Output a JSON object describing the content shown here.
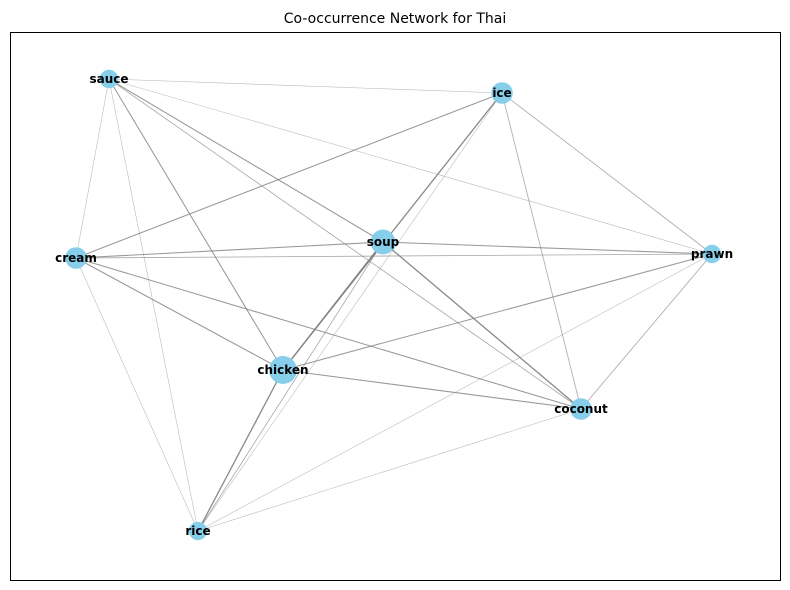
{
  "title": "Co-occurrence Network for Thai",
  "colors": {
    "node": "#87ceeb",
    "edge": "#808080",
    "frame": "#000000",
    "label": "#000000"
  },
  "chart_data": {
    "type": "network",
    "nodes": [
      {
        "id": "sauce",
        "label": "sauce",
        "weight": 2
      },
      {
        "id": "ice",
        "label": "ice",
        "weight": 3
      },
      {
        "id": "cream",
        "label": "cream",
        "weight": 3
      },
      {
        "id": "soup",
        "label": "soup",
        "weight": 4
      },
      {
        "id": "prawn",
        "label": "prawn",
        "weight": 2
      },
      {
        "id": "chicken",
        "label": "chicken",
        "weight": 5
      },
      {
        "id": "coconut",
        "label": "coconut",
        "weight": 3
      },
      {
        "id": "rice",
        "label": "rice",
        "weight": 2
      }
    ],
    "edges": [
      {
        "source": "sauce",
        "target": "ice",
        "weight": 1
      },
      {
        "source": "sauce",
        "target": "cream",
        "weight": 1
      },
      {
        "source": "sauce",
        "target": "soup",
        "weight": 3
      },
      {
        "source": "sauce",
        "target": "prawn",
        "weight": 1
      },
      {
        "source": "sauce",
        "target": "chicken",
        "weight": 3
      },
      {
        "source": "sauce",
        "target": "coconut",
        "weight": 2
      },
      {
        "source": "sauce",
        "target": "rice",
        "weight": 1
      },
      {
        "source": "ice",
        "target": "cream",
        "weight": 3
      },
      {
        "source": "ice",
        "target": "chicken",
        "weight": 4
      },
      {
        "source": "ice",
        "target": "prawn",
        "weight": 2
      },
      {
        "source": "ice",
        "target": "coconut",
        "weight": 2
      },
      {
        "source": "ice",
        "target": "rice",
        "weight": 1
      },
      {
        "source": "cream",
        "target": "soup",
        "weight": 3
      },
      {
        "source": "cream",
        "target": "prawn",
        "weight": 2
      },
      {
        "source": "cream",
        "target": "chicken",
        "weight": 3
      },
      {
        "source": "cream",
        "target": "coconut",
        "weight": 3
      },
      {
        "source": "cream",
        "target": "rice",
        "weight": 1
      },
      {
        "source": "soup",
        "target": "prawn",
        "weight": 3
      },
      {
        "source": "soup",
        "target": "chicken",
        "weight": 4
      },
      {
        "source": "soup",
        "target": "coconut",
        "weight": 4
      },
      {
        "source": "soup",
        "target": "rice",
        "weight": 2
      },
      {
        "source": "prawn",
        "target": "chicken",
        "weight": 3
      },
      {
        "source": "prawn",
        "target": "coconut",
        "weight": 2
      },
      {
        "source": "prawn",
        "target": "rice",
        "weight": 1
      },
      {
        "source": "chicken",
        "target": "coconut",
        "weight": 3
      },
      {
        "source": "chicken",
        "target": "rice",
        "weight": 4
      },
      {
        "source": "coconut",
        "target": "rice",
        "weight": 1
      }
    ]
  }
}
